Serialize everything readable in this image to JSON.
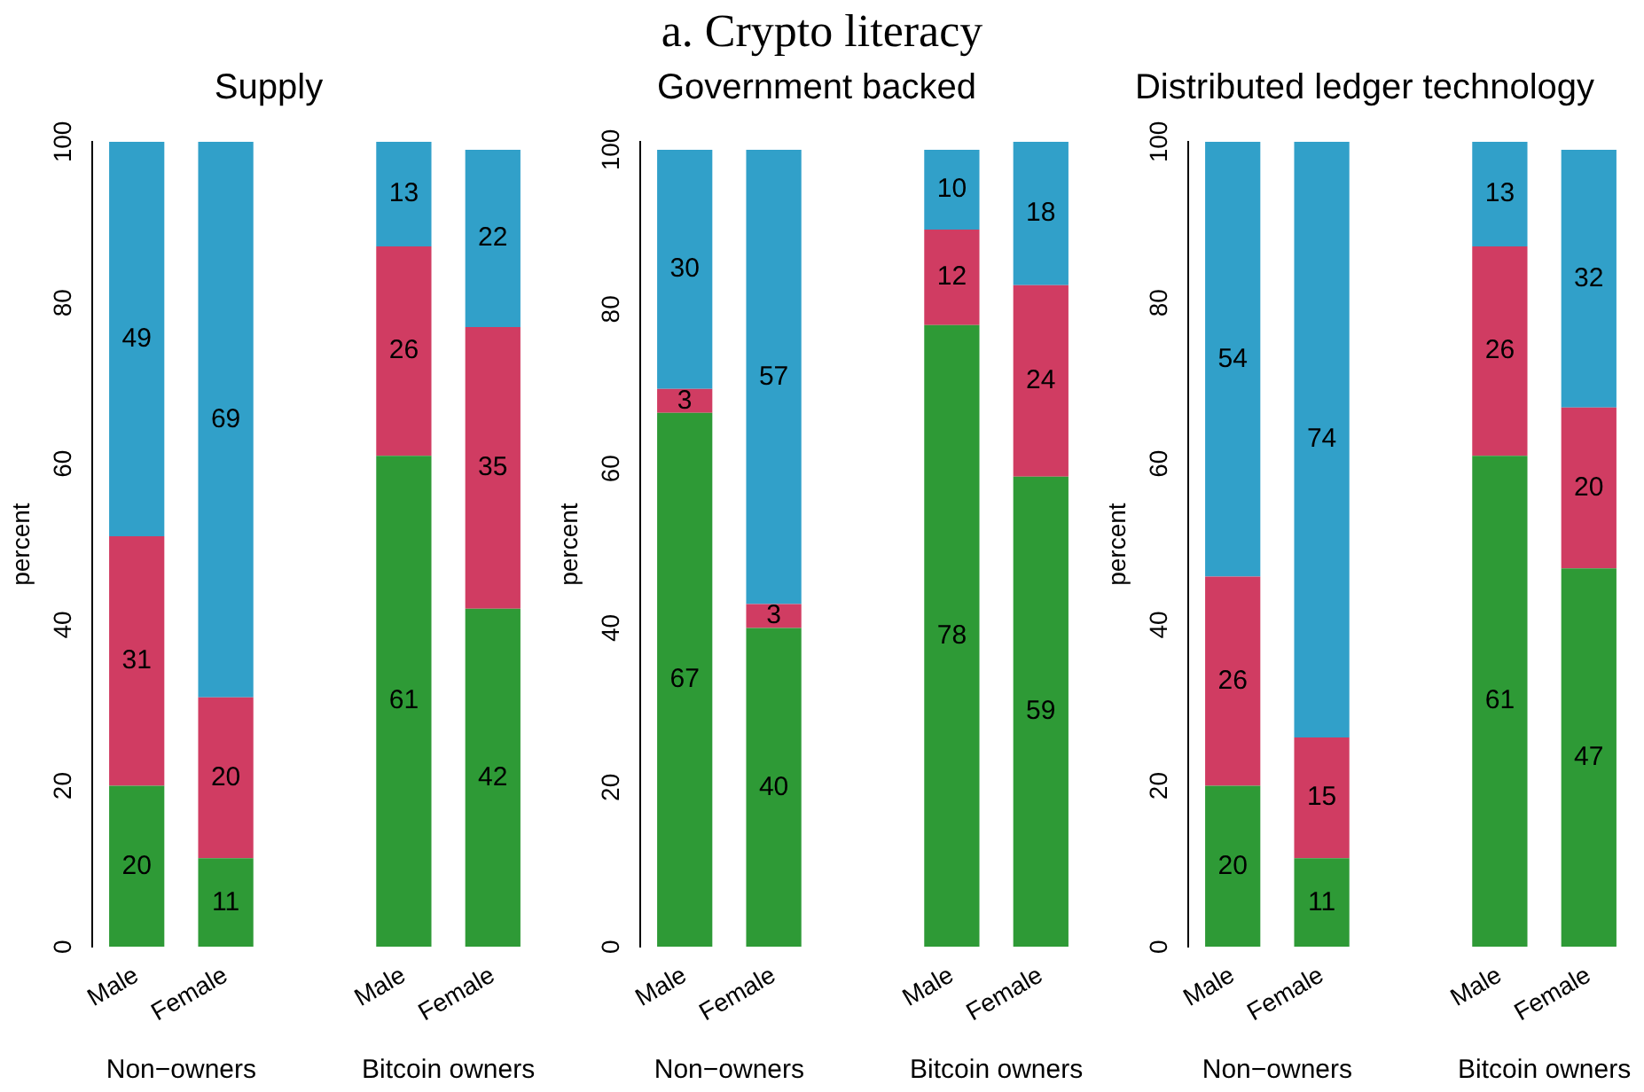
{
  "chart_data": [
    {
      "type": "other",
      "title": "a. Crypto literacy"
    },
    {
      "type": "bar",
      "title": "Supply",
      "ylabel": "percent",
      "stacked": true,
      "data_labels": true,
      "categories": [
        "Male",
        "Female",
        null,
        "Male",
        "Female"
      ],
      "annotations": [
        "Non−owners",
        "Bitcoin owners"
      ],
      "ylim": [
        0,
        100
      ],
      "yticks": [
        0,
        20,
        40,
        60,
        80,
        100
      ],
      "series": [
        {
          "color": "#2e9a36",
          "values": [
            20,
            11,
            null,
            61,
            42
          ]
        },
        {
          "color": "#d03c62",
          "values": [
            31,
            20,
            null,
            26,
            35
          ]
        },
        {
          "color": "#31a0c9",
          "values": [
            49,
            69,
            null,
            13,
            22
          ]
        }
      ]
    },
    {
      "type": "bar",
      "title": "Government backed",
      "ylabel": "percent",
      "stacked": true,
      "data_labels": true,
      "categories": [
        "Male",
        "Female",
        null,
        "Male",
        "Female"
      ],
      "annotations": [
        "Non−owners",
        "Bitcoin owners"
      ],
      "ylim": [
        0,
        101
      ],
      "yticks": [
        0,
        20,
        40,
        60,
        80,
        100
      ],
      "series": [
        {
          "color": "#2e9a36",
          "values": [
            67,
            40,
            null,
            78,
            59
          ]
        },
        {
          "color": "#d03c62",
          "values": [
            3,
            3,
            null,
            12,
            24
          ]
        },
        {
          "color": "#31a0c9",
          "values": [
            30,
            57,
            null,
            10,
            18
          ]
        }
      ]
    },
    {
      "type": "bar",
      "title": "Distributed ledger technology",
      "ylabel": "percent",
      "stacked": true,
      "data_labels": true,
      "categories": [
        "Male",
        "Female",
        null,
        "Male",
        "Female"
      ],
      "annotations": [
        "Non−owners",
        "Bitcoin owners"
      ],
      "ylim": [
        0,
        100
      ],
      "yticks": [
        0,
        20,
        40,
        60,
        80,
        100
      ],
      "series": [
        {
          "color": "#2e9a36",
          "values": [
            20,
            11,
            null,
            61,
            47
          ]
        },
        {
          "color": "#d03c62",
          "values": [
            26,
            15,
            null,
            26,
            20
          ]
        },
        {
          "color": "#31a0c9",
          "values": [
            54,
            74,
            null,
            13,
            32
          ]
        }
      ]
    }
  ]
}
